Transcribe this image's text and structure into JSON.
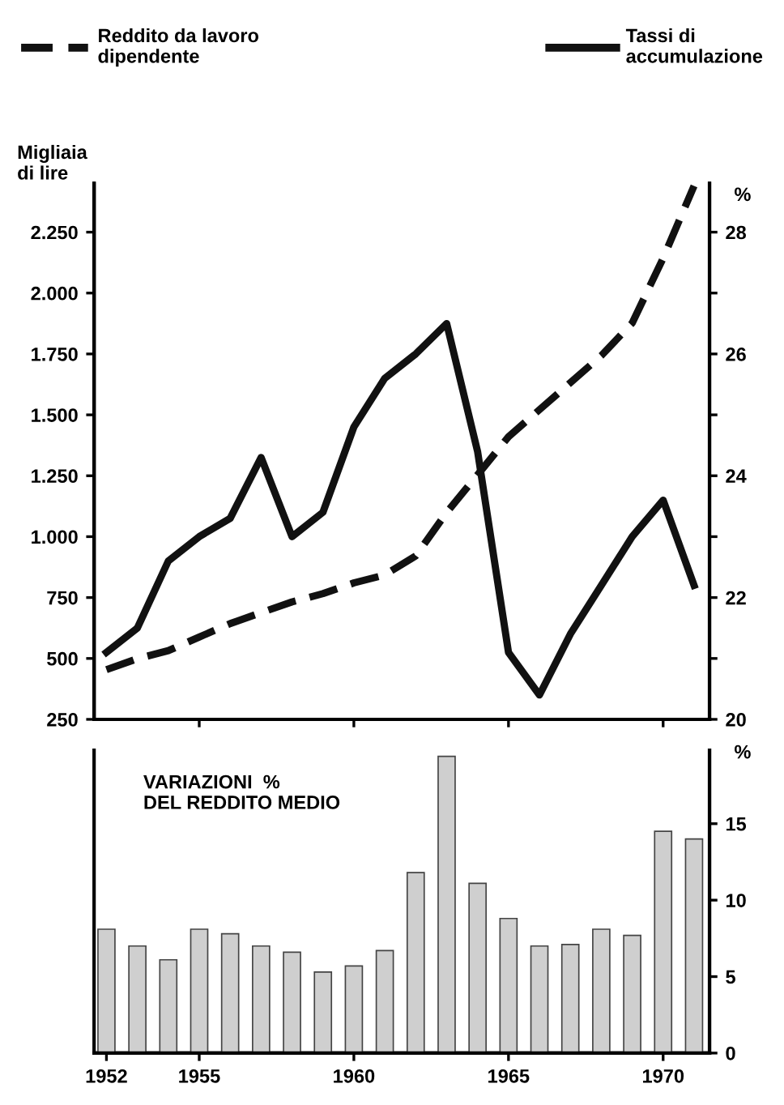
{
  "chart_data": [
    {
      "type": "line",
      "legend": "top",
      "ylabel": "Migliaia\ndi lire",
      "y2label": "%",
      "x": [
        1952,
        1953,
        1954,
        1955,
        1956,
        1957,
        1958,
        1959,
        1960,
        1961,
        1962,
        1963,
        1964,
        1965,
        1966,
        1967,
        1968,
        1969,
        1970,
        1971
      ],
      "series": [
        {
          "name": "Reddito da lavoro\ndipendente",
          "color": "#111111",
          "line_style": "dashed",
          "axis": "y",
          "values": [
            454,
            499,
            532,
            588,
            643,
            688,
            732,
            766,
            810,
            843,
            921,
            1099,
            1254,
            1410,
            1521,
            1632,
            1743,
            1877,
            2143,
            2440
          ]
        },
        {
          "name": "Tassi di\naccumulazione",
          "color": "#111111",
          "line_style": "solid",
          "axis": "y2",
          "values": [
            21.1,
            21.5,
            22.6,
            23.0,
            23.3,
            24.3,
            23.0,
            23.4,
            24.8,
            25.6,
            26.0,
            26.5,
            24.4,
            21.1,
            20.4,
            21.4,
            22.2,
            23.0,
            23.6,
            22.2
          ]
        }
      ],
      "xlim": [
        1951.6,
        1971.5
      ],
      "xticks": [
        {
          "value": 1955,
          "label": null
        },
        {
          "value": 1960,
          "label": null
        },
        {
          "value": 1965,
          "label": null
        },
        {
          "value": 1970,
          "label": null
        }
      ],
      "ylim": [
        250,
        2450
      ],
      "yticks": [
        250,
        500,
        750,
        {
          "value": 1000,
          "label": "1.000"
        },
        {
          "value": 1250,
          "label": "1.250"
        },
        {
          "value": 1500,
          "label": "1.500"
        },
        {
          "value": 1750,
          "label": "1.750"
        },
        {
          "value": 2000,
          "label": "2.000"
        },
        {
          "value": 2250,
          "label": "2.250"
        }
      ],
      "y2lim": [
        20,
        28.8
      ],
      "y2ticks": [
        20,
        {
          "value": 21,
          "label": null
        },
        22,
        {
          "value": 23,
          "label": null
        },
        24,
        {
          "value": 25,
          "label": null
        },
        26,
        {
          "value": 27,
          "label": null
        },
        28
      ],
      "tick_labels": "y",
      "grid": false
    },
    {
      "type": "bar",
      "title": "VARIAZIONI  %\nDEL REDDITO MEDIO",
      "y2label": "%",
      "x": [
        1952,
        1953,
        1954,
        1955,
        1956,
        1957,
        1958,
        1959,
        1960,
        1961,
        1962,
        1963,
        1964,
        1965,
        1966,
        1967,
        1968,
        1969,
        1970,
        1971
      ],
      "series": [
        {
          "color": "#cfcfcf",
          "axis": "y2",
          "values": [
            8.1,
            7.0,
            6.1,
            8.1,
            7.8,
            7.0,
            6.6,
            5.3,
            5.7,
            6.7,
            11.8,
            19.4,
            11.1,
            8.8,
            7.0,
            7.1,
            8.1,
            7.7,
            14.5,
            14.0
          ]
        }
      ],
      "xlim": [
        1951.6,
        1971.5
      ],
      "xticks": [
        1952,
        1955,
        1960,
        1965,
        1970
      ],
      "y2lim": [
        0,
        19.8
      ],
      "y2ticks": [
        0,
        5,
        10,
        15
      ],
      "grid": false
    }
  ]
}
